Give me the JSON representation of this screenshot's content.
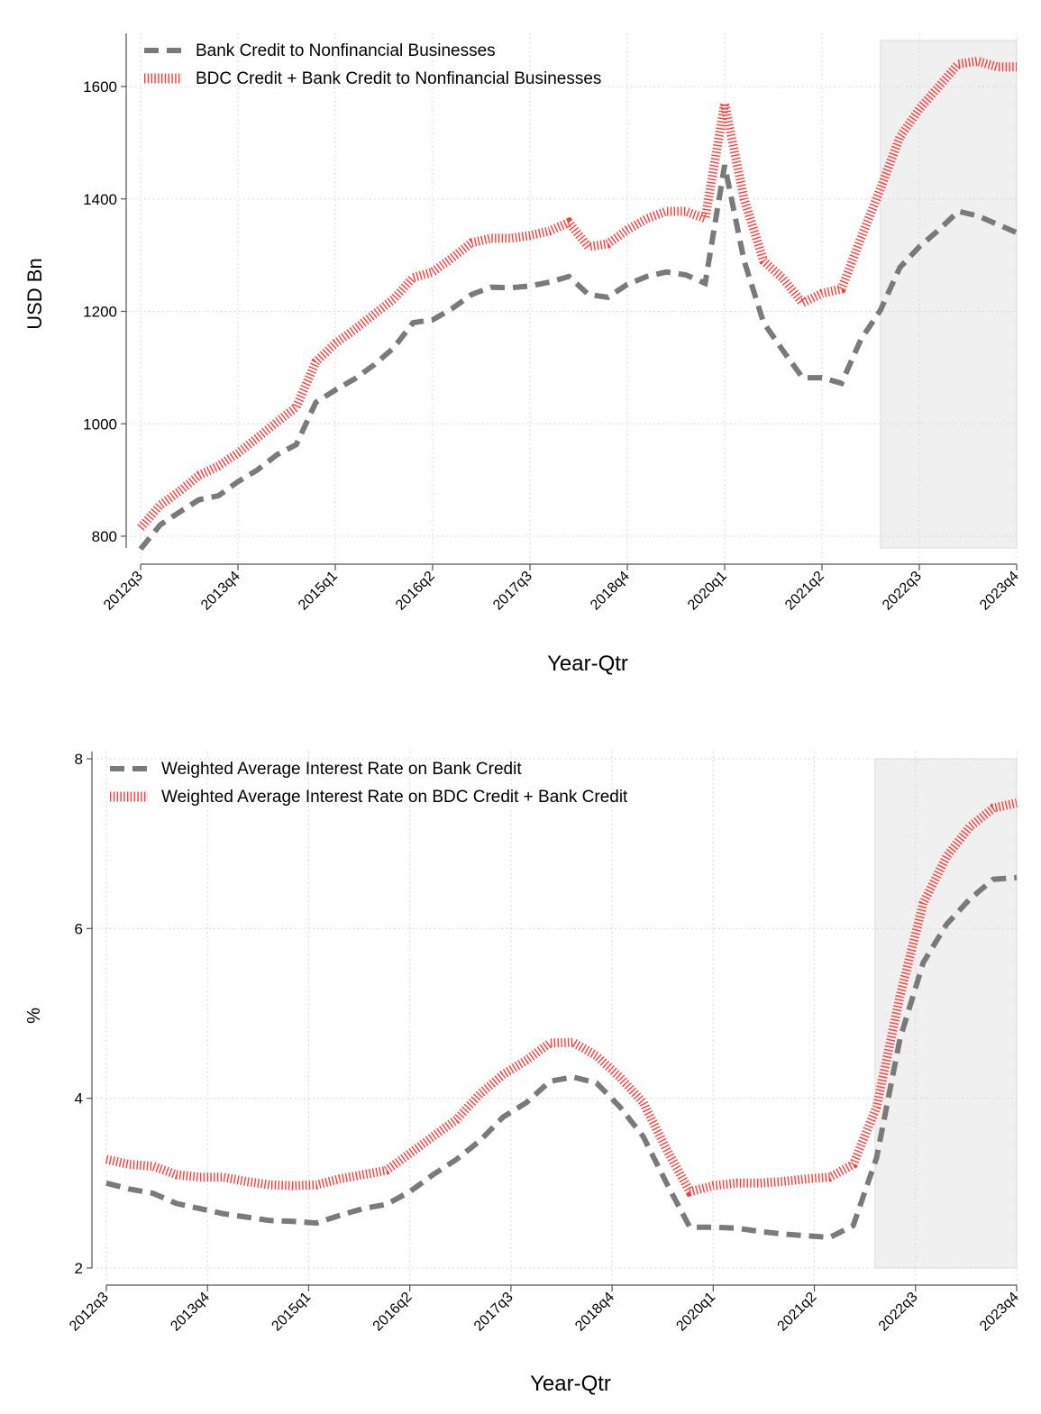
{
  "chart_data": [
    {
      "type": "line",
      "title": "",
      "xlabel": "Year-Qtr",
      "ylabel": "USD Bn",
      "ylim": [
        780,
        1680
      ],
      "yticks": [
        800,
        1000,
        1200,
        1400,
        1600
      ],
      "xtick_labels": [
        "2012q3",
        "2013q4",
        "2015q1",
        "2016q2",
        "2017q3",
        "2018q4",
        "2020q1",
        "2021q2",
        "2022q3",
        "2023q4"
      ],
      "shaded_region": {
        "start": "2022q1",
        "end": "2023q4"
      },
      "legend_position": "top-left",
      "series": [
        {
          "name": "Bank Credit to Nonfinancial Businesses",
          "style": "dashed",
          "color": "#7a7a7a",
          "values": [
            777,
            820,
            843,
            865,
            872,
            897,
            918,
            945,
            963,
            1038,
            1060,
            1080,
            1105,
            1135,
            1180,
            1185,
            1205,
            1230,
            1243,
            1242,
            1245,
            1252,
            1262,
            1230,
            1225,
            1248,
            1262,
            1270,
            1265,
            1250,
            1460,
            1290,
            1180,
            1130,
            1082,
            1082,
            1072,
            1150,
            1202,
            1278,
            1315,
            1345,
            1378,
            1370,
            1355,
            1340
          ]
        },
        {
          "name": "BDC Credit + Bank Credit to Nonfinancial Businesses",
          "style": "hatched",
          "color": "#ff3b3b",
          "values": [
            815,
            855,
            880,
            908,
            925,
            948,
            975,
            1003,
            1030,
            1110,
            1143,
            1168,
            1195,
            1222,
            1260,
            1270,
            1295,
            1322,
            1330,
            1330,
            1335,
            1343,
            1358,
            1315,
            1320,
            1345,
            1365,
            1378,
            1378,
            1365,
            1570,
            1400,
            1290,
            1258,
            1215,
            1232,
            1240,
            1330,
            1418,
            1510,
            1560,
            1600,
            1640,
            1645,
            1635,
            1635
          ]
        }
      ]
    },
    {
      "type": "line",
      "title": "",
      "xlabel": "Year-Qtr",
      "ylabel": "%",
      "ylim": [
        2,
        8
      ],
      "yticks": [
        2,
        4,
        6,
        8
      ],
      "xtick_labels": [
        "2012q3",
        "2013q4",
        "2015q1",
        "2016q2",
        "2017q3",
        "2018q4",
        "2020q1",
        "2021q2",
        "2022q3",
        "2023q4"
      ],
      "shaded_region": {
        "start": "2022q1",
        "end": "2023q4"
      },
      "legend_position": "top-left",
      "series": [
        {
          "name": "Weighted Average Interest Rate on Bank Credit",
          "style": "dashed",
          "color": "#7a7a7a",
          "values": [
            3.0,
            2.93,
            2.88,
            2.76,
            2.7,
            2.64,
            2.6,
            2.56,
            2.55,
            2.53,
            2.62,
            2.7,
            2.75,
            2.9,
            3.1,
            3.28,
            3.5,
            3.78,
            3.95,
            4.2,
            4.25,
            4.18,
            3.9,
            3.55,
            3.0,
            2.48,
            2.48,
            2.47,
            2.43,
            2.4,
            2.38,
            2.36,
            2.5,
            3.3,
            4.7,
            5.6,
            6.05,
            6.35,
            6.58,
            6.6
          ]
        },
        {
          "name": "Weighted Average Interest Rate on BDC Credit + Bank Credit",
          "style": "hatched",
          "color": "#ff3b3b",
          "values": [
            3.28,
            3.22,
            3.2,
            3.1,
            3.07,
            3.07,
            3.02,
            2.98,
            2.97,
            2.98,
            3.05,
            3.1,
            3.15,
            3.35,
            3.55,
            3.75,
            4.05,
            4.28,
            4.45,
            4.65,
            4.66,
            4.5,
            4.25,
            3.95,
            3.4,
            2.9,
            2.97,
            3.0,
            3.0,
            3.02,
            3.05,
            3.07,
            3.22,
            3.9,
            5.2,
            6.3,
            6.85,
            7.2,
            7.42,
            7.48
          ]
        }
      ]
    }
  ]
}
